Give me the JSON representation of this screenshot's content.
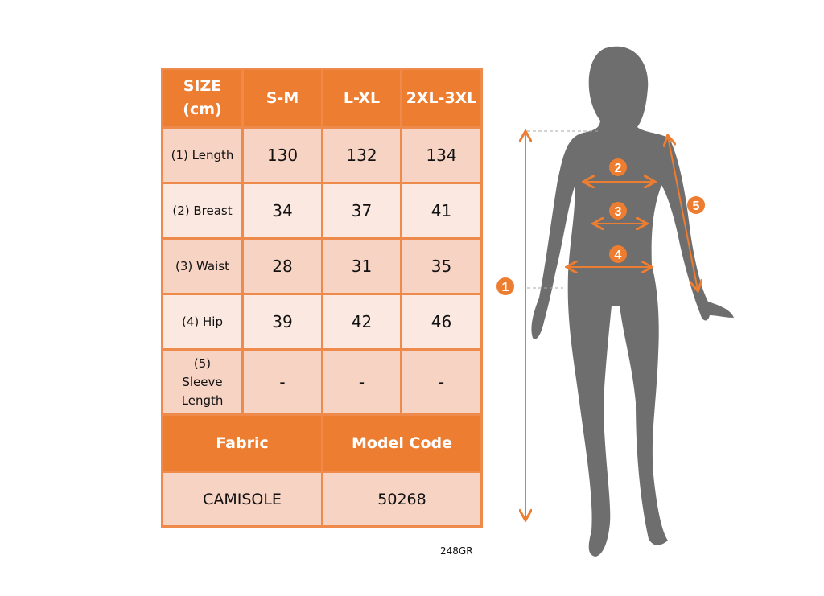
{
  "table": {
    "header": [
      "SIZE (cm)",
      "S-M",
      "L-XL",
      "2XL-3XL"
    ],
    "rows": [
      {
        "label": "(1) Length",
        "values": [
          "130",
          "132",
          "134"
        ]
      },
      {
        "label": "(2) Breast",
        "values": [
          "34",
          "37",
          "41"
        ]
      },
      {
        "label": "(3) Waist",
        "values": [
          "28",
          "31",
          "35"
        ]
      },
      {
        "label": "(4) Hip",
        "values": [
          "39",
          "42",
          "46"
        ]
      },
      {
        "label": "(5) Sleeve Length",
        "values": [
          "-",
          "-",
          "-"
        ]
      }
    ],
    "footer_headers": [
      "Fabric",
      "Model Code"
    ],
    "footer_values": [
      "CAMISOLE",
      "50268"
    ]
  },
  "product_code": "248GR",
  "figure": {
    "markers": [
      "1",
      "2",
      "3",
      "4",
      "5"
    ]
  },
  "colors": {
    "accent": "#ED7D31",
    "silhouette": "#6E6E6E",
    "row_dark": "#F7D3C4",
    "row_light": "#FBE8E1"
  }
}
